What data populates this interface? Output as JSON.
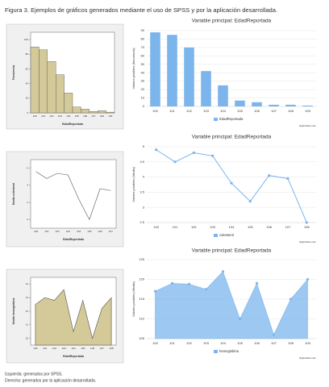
{
  "caption": "Figura 3. Ejemplos de gráficos generados mediante el uso de SPSS y por la aplicación desarrollada.",
  "footnotes": [
    "Izquierda: generados por SPSS.",
    "Derecha: generados por la aplicación desarrollada."
  ],
  "chart_data": [
    {
      "type": "bar",
      "ylabel": "Frecuencia",
      "xlabel": "EdadReportada",
      "categories": [
        "100",
        "101",
        "102",
        "103",
        "104",
        "105",
        "106",
        "107",
        "108",
        "109"
      ],
      "values": [
        90,
        86,
        70,
        52,
        27,
        8,
        5,
        2,
        3,
        1
      ],
      "color": "#d3c999",
      "ylim": [
        0,
        110
      ],
      "yticks": [
        0,
        20,
        40,
        60,
        80,
        100
      ],
      "grid": false
    },
    {
      "type": "bar",
      "title": "Variable principal: EdadReportada",
      "ylabel": "Valores posibles (frecuencia)",
      "categories": [
        "100",
        "101",
        "102",
        "103",
        "104",
        "105",
        "106",
        "107",
        "108",
        "109"
      ],
      "series": [
        {
          "name": "EdadReportada",
          "color": "#7cb5ec",
          "values": [
            88,
            85,
            70,
            42,
            25,
            7,
            5,
            2,
            2,
            1
          ]
        }
      ],
      "ylim": [
        0,
        90
      ],
      "yticks": [
        0,
        10,
        20,
        30,
        40,
        50,
        60,
        70,
        80,
        90
      ],
      "grid": true,
      "credits": "Highcharts.com"
    },
    {
      "type": "line",
      "ylabel": "Media colesterol",
      "xlabel": "EdadReportada",
      "categories": [
        "100",
        "101",
        "102",
        "103",
        "104",
        "105",
        "106",
        "107"
      ],
      "values": [
        4.8,
        4.4,
        4.7,
        4.6,
        3.2,
        2.0,
        3.8,
        3.7
      ],
      "color": "#555555",
      "ylim": [
        1.5,
        5.5
      ],
      "yticks": [
        2.0,
        3.0,
        4.0,
        5.0
      ],
      "grid": false
    },
    {
      "type": "line",
      "title": "Variable principal: EdadReportada",
      "ylabel": "Valores posibles (Media)",
      "categories": [
        "100",
        "101",
        "102",
        "103",
        "104",
        "105",
        "106",
        "107",
        "108"
      ],
      "series": [
        {
          "name": "colesterol",
          "color": "#7cb5ec",
          "values": [
            4.9,
            4.5,
            4.8,
            4.7,
            3.8,
            3.2,
            4.05,
            3.95,
            2.5
          ]
        }
      ],
      "ylim": [
        2.5,
        5
      ],
      "yticks": [
        2.5,
        3,
        3.5,
        4,
        4.5,
        5
      ],
      "grid": true,
      "credits": "Highcharts.com"
    },
    {
      "type": "area",
      "ylabel": "Media hemoglobina",
      "xlabel": "EdadReportada",
      "categories": [
        "100",
        "101",
        "102",
        "103",
        "104",
        "105",
        "106",
        "107",
        "108"
      ],
      "values": [
        12.5,
        13.0,
        12.8,
        13.6,
        10.5,
        12.8,
        10.0,
        12.2,
        13.0
      ],
      "color": "#d3c999",
      "ylim": [
        9.5,
        14.5
      ],
      "yticks": [
        10,
        11,
        12,
        13,
        14
      ],
      "grid": false
    },
    {
      "type": "area",
      "title": "Variable principal: EdadReportada",
      "ylabel": "Valores posibles (Media)",
      "categories": [
        "100",
        "101",
        "102",
        "103",
        "104",
        "105",
        "106",
        "107",
        "108",
        "109"
      ],
      "series": [
        {
          "name": "hemoglobina",
          "color": "#7cb5ec",
          "values": [
            117,
            119,
            118.8,
            117.5,
            122,
            110,
            119,
            106,
            115,
            120
          ]
        }
      ],
      "ylim": [
        105,
        125
      ],
      "yticks": [
        105,
        110,
        115,
        120,
        125
      ],
      "grid": true,
      "credits": "Highcharts.com"
    }
  ]
}
